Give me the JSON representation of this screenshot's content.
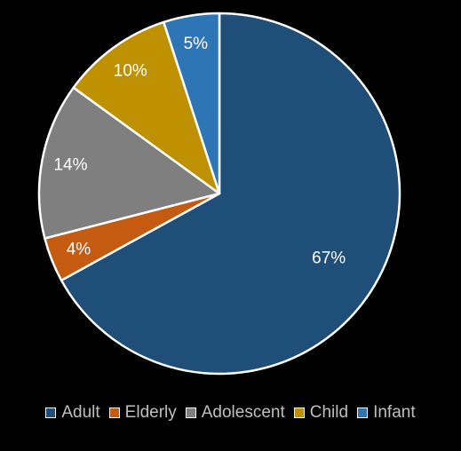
{
  "chart_data": {
    "type": "pie",
    "title": "",
    "slices": [
      {
        "name": "Adult",
        "value": 67,
        "label": "67%",
        "color": "#1f4e79"
      },
      {
        "name": "Elderly",
        "value": 4,
        "label": "4%",
        "color": "#c55a11"
      },
      {
        "name": "Adolescent",
        "value": 14,
        "label": "14%",
        "color": "#7f7f7f"
      },
      {
        "name": "Child",
        "value": 10,
        "label": "10%",
        "color": "#bf9000"
      },
      {
        "name": "Infant",
        "value": 5,
        "label": "5%",
        "color": "#2e75b6"
      }
    ],
    "start": "12 o'clock",
    "direction": "clockwise",
    "legend_position": "bottom",
    "slice_border_color": "#ffffff",
    "background_color": "#000000"
  }
}
